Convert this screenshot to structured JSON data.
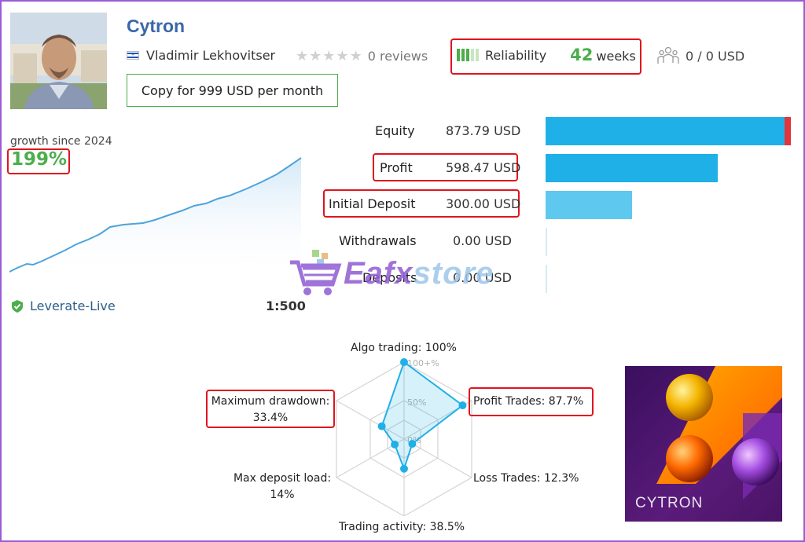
{
  "header": {
    "title": "Cytron",
    "author": "Vladimir Lekhovitser",
    "reviews": "0 reviews",
    "reliability_label": "Reliability",
    "weeks_value": "42",
    "weeks_unit": "weeks",
    "subscribers": "0 / 0 USD",
    "copy_button": "Copy for 999 USD per month"
  },
  "growth": {
    "label": "growth since 2024",
    "value": "199%"
  },
  "account": {
    "broker": "Leverate-Live",
    "leverage": "1:500"
  },
  "stats": [
    {
      "label": "Equity",
      "value": "873.79 USD",
      "fraction": 1.0
    },
    {
      "label": "Profit",
      "value": "598.47 USD",
      "fraction": 0.685
    },
    {
      "label": "Initial Deposit",
      "value": "300.00 USD",
      "fraction": 0.343
    },
    {
      "label": "Withdrawals",
      "value": "0.00 USD",
      "fraction": 0
    },
    {
      "label": "Deposits",
      "value": "0.00 USD",
      "fraction": 0
    }
  ],
  "radar": {
    "tick_100": "100+%",
    "tick_50": "50%",
    "tick_0": "0%",
    "metrics": [
      {
        "label": "Algo trading: 100%",
        "percent": 100
      },
      {
        "label": "Profit Trades: 87.7%",
        "percent": 87.7
      },
      {
        "label": "Loss Trades: 12.3%",
        "percent": 12.3
      },
      {
        "label": "Trading activity: 38.5%",
        "percent": 38.5
      },
      {
        "label": "Max deposit load:",
        "sub": "14%",
        "percent": 14
      },
      {
        "label": "Maximum drawdown:",
        "sub": "33.4%",
        "percent": 33.4
      }
    ]
  },
  "logo": {
    "text": "CYTRON"
  },
  "watermark": {
    "text_a": "Eafx",
    "text_b": "store"
  },
  "colors": {
    "accent_green": "#4cae4c",
    "title_blue": "#3a67a8",
    "bar_blue": "#1fb0e8",
    "highlight_red": "#e0141e"
  }
}
